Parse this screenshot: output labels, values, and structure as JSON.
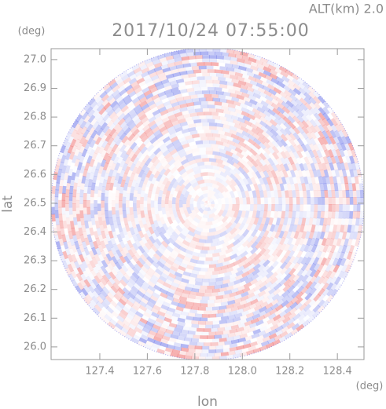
{
  "chart_data": {
    "type": "radar",
    "title": "2017/10/24 07:55:00",
    "subtitle": "ALT(km) 2.0",
    "x_label": "lon",
    "y_label": "lat",
    "x_unit": "(deg)",
    "y_unit": "(deg)",
    "xlim": [
      127.195,
      128.512
    ],
    "ylim": [
      25.956,
      27.038
    ],
    "xticks": [
      127.4,
      127.6,
      127.8,
      {
        "value": 128.0,
        "label": "128.0"
      },
      128.2,
      128.4
    ],
    "yticks": [
      {
        "value": 26.0,
        "label": "26.0"
      },
      26.1,
      26.2,
      26.3,
      26.4,
      26.5,
      26.6,
      26.7,
      26.8,
      26.9,
      {
        "value": 27.0,
        "label": "27.0"
      }
    ]
  }
}
